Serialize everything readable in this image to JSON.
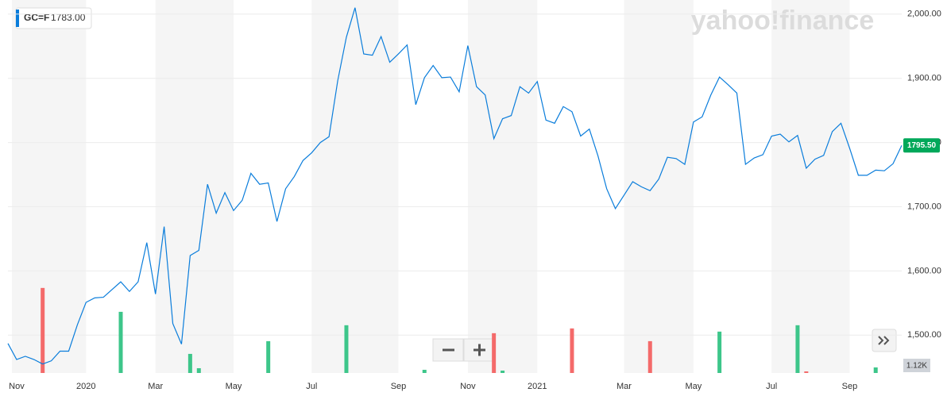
{
  "chart_data": {
    "type": "line",
    "watermark": "yahoo!finance",
    "symbol": "GC=F",
    "quote": {
      "value": 1783,
      "label": "1783.00"
    },
    "categories": [
      null,
      "Nov",
      null,
      null,
      null,
      null,
      null,
      null,
      null,
      "2020",
      null,
      null,
      null,
      null,
      null,
      null,
      null,
      "Mar",
      null,
      null,
      null,
      null,
      null,
      null,
      null,
      null,
      "May",
      null,
      null,
      null,
      null,
      null,
      null,
      null,
      null,
      "Jul",
      null,
      null,
      null,
      null,
      null,
      null,
      null,
      null,
      null,
      "Sep",
      null,
      null,
      null,
      null,
      null,
      null,
      null,
      "Nov",
      null,
      null,
      null,
      null,
      null,
      null,
      null,
      "2021",
      null,
      null,
      null,
      null,
      null,
      null,
      null,
      null,
      null,
      "Mar",
      null,
      null,
      null,
      null,
      null,
      null,
      null,
      "May",
      null,
      null,
      null,
      null,
      null,
      null,
      null,
      null,
      "Jul",
      null,
      null,
      null,
      null,
      null,
      null,
      null,
      null,
      "Sep",
      null,
      null,
      null,
      null,
      null,
      null
    ],
    "series": [
      {
        "name": "GC=F",
        "color": "#0a7ddb",
        "values": [
          1487,
          1462,
          1467,
          1462,
          1455,
          1460,
          1475,
          1475,
          1516,
          1551,
          1558,
          1559,
          1571,
          1583,
          1568,
          1583,
          1644,
          1564,
          1669,
          1518,
          1486,
          1624,
          1632,
          1735,
          1690,
          1722,
          1694,
          1710,
          1752,
          1735,
          1737,
          1677,
          1728,
          1747,
          1772,
          1784,
          1800,
          1809,
          1896,
          1964,
          2010,
          1938,
          1936,
          1965,
          1925,
          1938,
          1952,
          1859,
          1901,
          1920,
          1901,
          1902,
          1879,
          1951,
          1887,
          1874,
          1806,
          1837,
          1842,
          1887,
          1877,
          1895,
          1835,
          1830,
          1856,
          1848,
          1810,
          1821,
          1779,
          1728,
          1697,
          1718,
          1739,
          1731,
          1725,
          1743,
          1777,
          1775,
          1766,
          1832,
          1840,
          1874,
          1902,
          1890,
          1877,
          1766,
          1776,
          1781,
          1810,
          1813,
          1801,
          1811,
          1760,
          1774,
          1780,
          1817,
          1830,
          1791,
          1749,
          1749,
          1757,
          1756,
          1767,
          1795.5
        ]
      }
    ],
    "ylim": [
      1441,
      2022
    ],
    "yticks": [
      {
        "value": 1500,
        "label": "1,500.00"
      },
      {
        "value": 1600,
        "label": "1,600.00"
      },
      {
        "value": 1700,
        "label": "1,700.00"
      },
      {
        "value": 1800,
        "label": "1,800.00"
      },
      {
        "value": 1900,
        "label": "1,900.00"
      },
      {
        "value": 2000,
        "label": "2,000.00"
      }
    ],
    "grid": true,
    "last_price": {
      "value": 1795.5,
      "label": "1795.50",
      "color": "#00a85a"
    },
    "volume": {
      "ylim": [
        0,
        75000
      ],
      "up_color": "#3dc68a",
      "down_color": "#f46a6a",
      "values": [
        0,
        0,
        0,
        0,
        17100,
        0,
        0,
        0,
        0,
        0,
        0,
        0,
        0,
        12300,
        0,
        0,
        0,
        0,
        0,
        0,
        0,
        3840,
        960,
        0,
        0,
        0,
        0,
        0,
        0,
        0,
        6400,
        0,
        0,
        0,
        0,
        0,
        0,
        0,
        0,
        9600,
        0,
        0,
        0,
        0,
        0,
        0,
        0,
        0,
        640,
        0,
        0,
        0,
        0,
        0,
        0,
        0,
        8000,
        480,
        0,
        0,
        0,
        0,
        0,
        0,
        0,
        8960,
        0,
        0,
        0,
        0,
        0,
        0,
        0,
        0,
        6400,
        0,
        0,
        0,
        0,
        0,
        0,
        0,
        8320,
        0,
        0,
        0,
        0,
        0,
        0,
        0,
        0,
        9600,
        320,
        0,
        0,
        0,
        0,
        0,
        0,
        0,
        1120,
        0,
        0,
        0
      ],
      "value_labels": [
        null,
        null,
        null,
        null,
        null,
        null,
        null,
        null,
        null,
        null,
        null,
        null,
        null,
        null,
        null,
        null,
        null,
        null,
        null,
        null,
        null,
        null,
        null,
        null,
        null,
        null,
        null,
        null,
        null,
        null,
        null,
        null,
        null,
        null,
        null,
        null,
        null,
        null,
        null,
        null,
        null,
        null,
        null,
        null,
        null,
        null,
        null,
        null,
        null,
        null,
        null,
        null,
        null,
        null,
        null,
        null,
        null,
        null,
        null,
        null,
        null,
        null,
        null,
        null,
        null,
        null,
        null,
        null,
        null,
        null,
        null,
        null,
        null,
        null,
        null,
        null,
        null,
        null,
        null,
        null,
        null,
        null,
        null,
        null,
        null,
        null,
        null,
        null,
        null,
        null,
        null,
        null,
        null,
        null,
        null,
        null,
        null,
        null,
        null,
        null,
        "1.12K",
        null,
        null,
        null
      ]
    }
  }
}
